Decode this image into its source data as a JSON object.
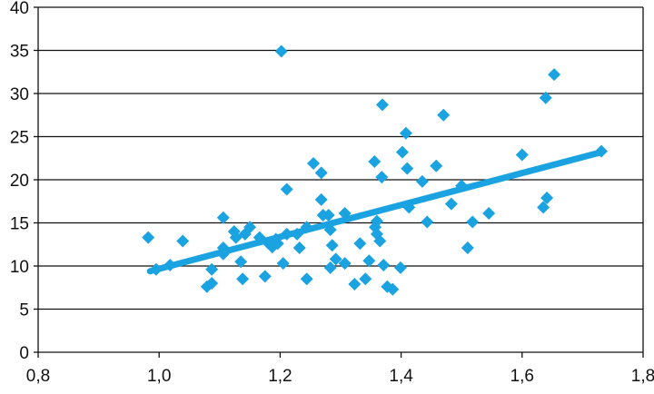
{
  "chart_data": {
    "type": "scatter",
    "title": "",
    "xlabel": "",
    "ylabel": "",
    "xlim": [
      0.8,
      1.8
    ],
    "ylim": [
      0,
      40
    ],
    "x_ticks": [
      "0,8",
      "1,0",
      "1,2",
      "1,4",
      "1,6",
      "1,8"
    ],
    "x_tick_values": [
      0.8,
      1.0,
      1.2,
      1.4,
      1.6,
      1.8
    ],
    "y_ticks": [
      "0",
      "5",
      "10",
      "15",
      "20",
      "25",
      "30",
      "35",
      "40"
    ],
    "y_tick_values": [
      0,
      5,
      10,
      15,
      20,
      25,
      30,
      35,
      40
    ],
    "grid": "horizontal",
    "color": "#1aa3e0",
    "points": [
      [
        0.982,
        13.3
      ],
      [
        0.995,
        9.6
      ],
      [
        1.018,
        10.1
      ],
      [
        1.039,
        12.9
      ],
      [
        1.079,
        7.6
      ],
      [
        1.087,
        8.0
      ],
      [
        1.087,
        9.6
      ],
      [
        1.106,
        15.6
      ],
      [
        1.106,
        12.1
      ],
      [
        1.106,
        11.4
      ],
      [
        1.124,
        14.0
      ],
      [
        1.127,
        13.3
      ],
      [
        1.135,
        10.5
      ],
      [
        1.138,
        8.5
      ],
      [
        1.142,
        13.7
      ],
      [
        1.15,
        14.5
      ],
      [
        1.166,
        13.3
      ],
      [
        1.175,
        8.8
      ],
      [
        1.181,
        12.6
      ],
      [
        1.187,
        12.2
      ],
      [
        1.193,
        13.1
      ],
      [
        1.196,
        12.6
      ],
      [
        1.202,
        34.9
      ],
      [
        1.205,
        10.3
      ],
      [
        1.211,
        13.7
      ],
      [
        1.211,
        18.9
      ],
      [
        1.228,
        13.7
      ],
      [
        1.232,
        12.1
      ],
      [
        1.244,
        8.5
      ],
      [
        1.244,
        14.5
      ],
      [
        1.255,
        21.9
      ],
      [
        1.268,
        20.8
      ],
      [
        1.268,
        17.7
      ],
      [
        1.271,
        15.9
      ],
      [
        1.28,
        15.9
      ],
      [
        1.283,
        9.8
      ],
      [
        1.283,
        14.2
      ],
      [
        1.286,
        12.4
      ],
      [
        1.292,
        10.8
      ],
      [
        1.307,
        10.3
      ],
      [
        1.307,
        16.1
      ],
      [
        1.323,
        7.9
      ],
      [
        1.332,
        12.6
      ],
      [
        1.341,
        8.5
      ],
      [
        1.347,
        10.6
      ],
      [
        1.356,
        22.1
      ],
      [
        1.357,
        14.5
      ],
      [
        1.36,
        15.2
      ],
      [
        1.36,
        13.7
      ],
      [
        1.365,
        12.9
      ],
      [
        1.368,
        20.3
      ],
      [
        1.369,
        28.7
      ],
      [
        1.371,
        10.1
      ],
      [
        1.377,
        7.6
      ],
      [
        1.386,
        7.3
      ],
      [
        1.399,
        9.8
      ],
      [
        1.402,
        23.2
      ],
      [
        1.408,
        25.4
      ],
      [
        1.41,
        21.3
      ],
      [
        1.413,
        16.8
      ],
      [
        1.435,
        19.8
      ],
      [
        1.443,
        15.1
      ],
      [
        1.458,
        21.6
      ],
      [
        1.47,
        27.5
      ],
      [
        1.483,
        17.2
      ],
      [
        1.5,
        19.3
      ],
      [
        1.51,
        12.1
      ],
      [
        1.518,
        15.1
      ],
      [
        1.545,
        16.1
      ],
      [
        1.6,
        22.9
      ],
      [
        1.635,
        16.8
      ],
      [
        1.641,
        17.9
      ],
      [
        1.639,
        29.5
      ],
      [
        1.653,
        32.2
      ],
      [
        1.731,
        23.3
      ]
    ],
    "trendline": {
      "x": [
        0.985,
        1.731
      ],
      "y": [
        9.4,
        23.2
      ]
    }
  }
}
